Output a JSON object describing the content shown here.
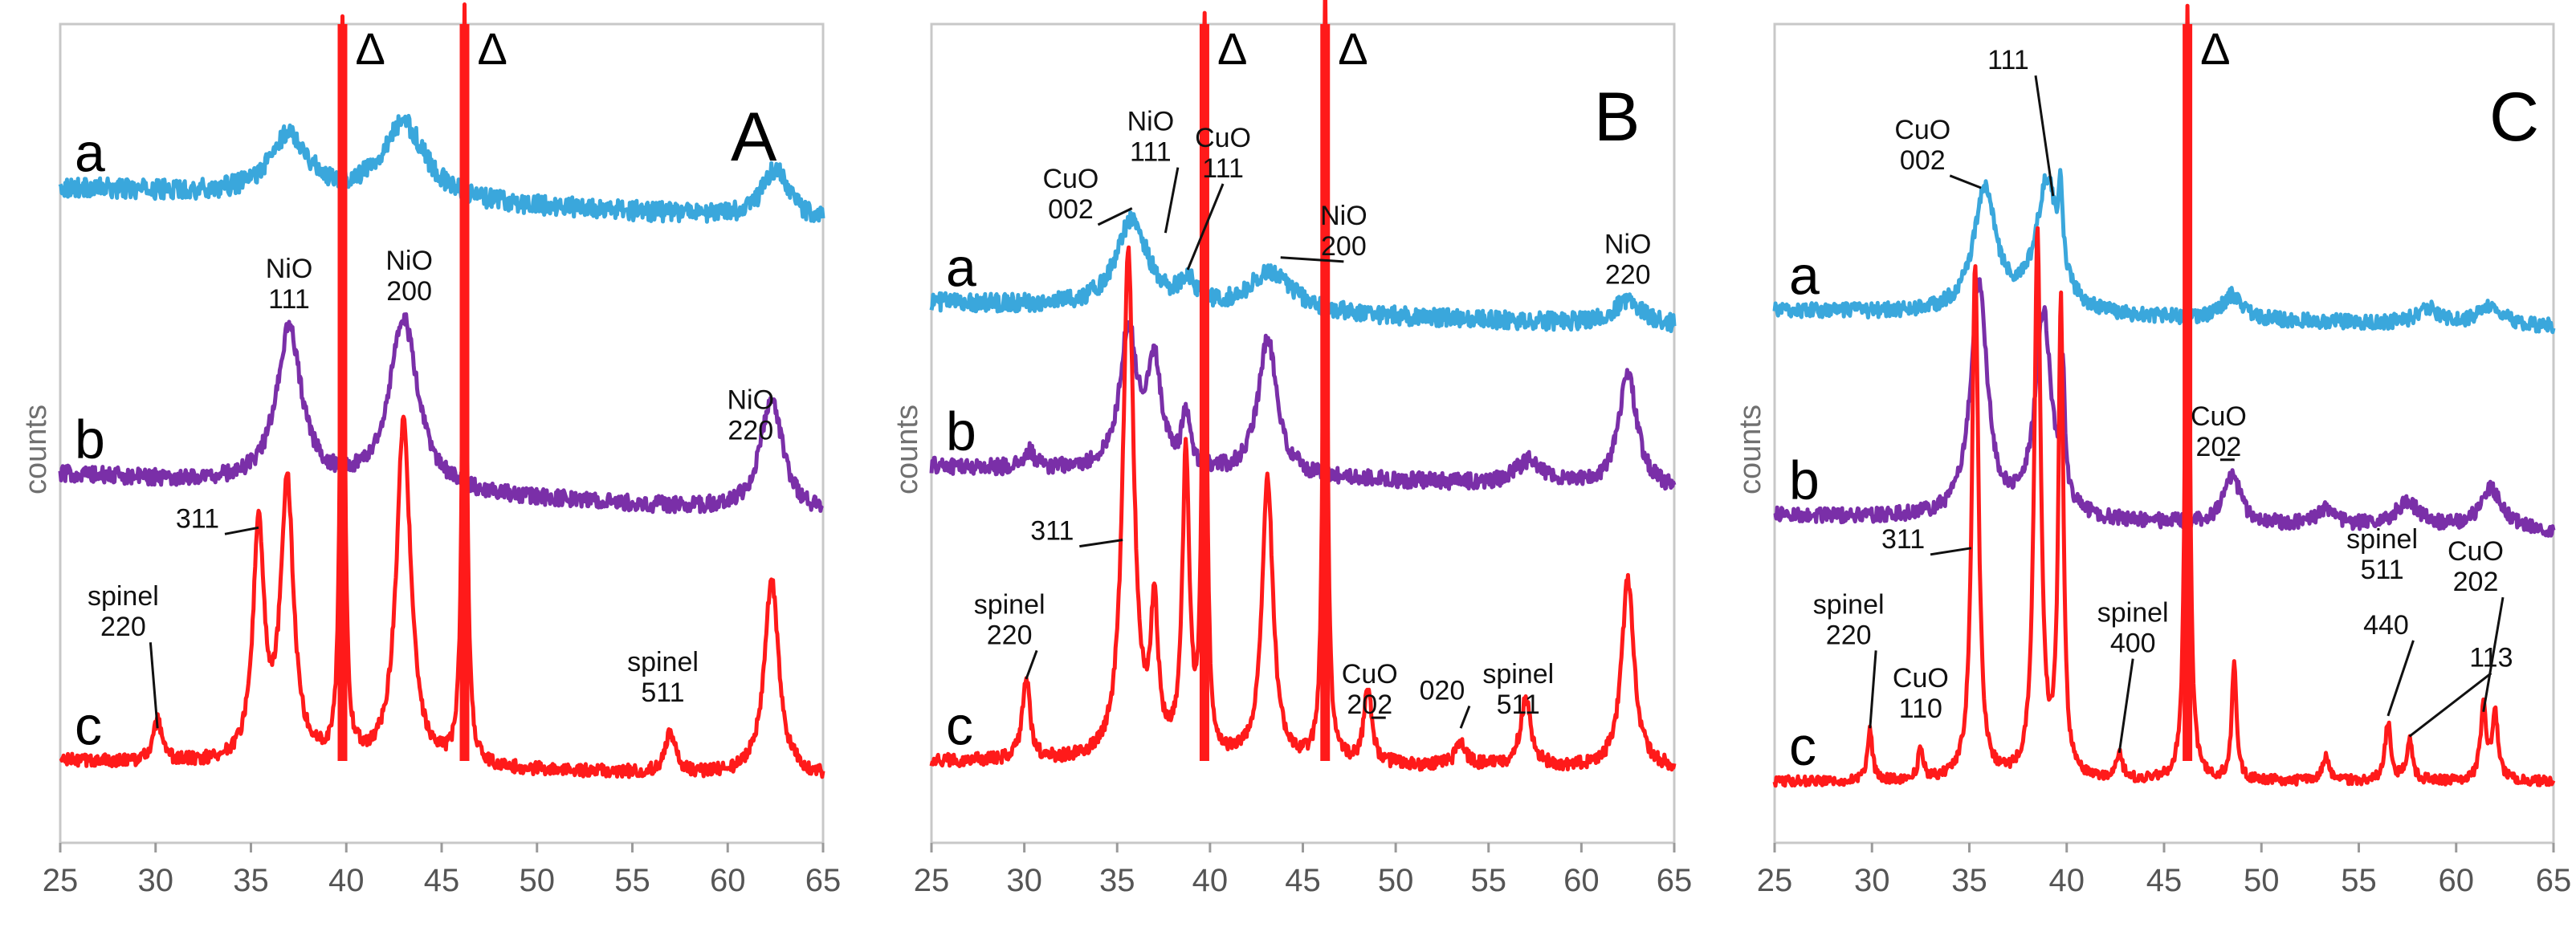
{
  "chart_data": [
    {
      "panel": "A",
      "type": "line",
      "xlabel": "",
      "ylabel": "counts",
      "xlim": [
        25,
        65
      ],
      "xticks": [
        "25",
        "30",
        "35",
        "40",
        "45",
        "50",
        "55",
        "60",
        "65"
      ],
      "delta_lines": [
        {
          "x": 39.8,
          "label": "Δ"
        },
        {
          "x": 46.2,
          "label": "Δ"
        }
      ],
      "series": [
        {
          "name": "a",
          "color": "#3aa7dc",
          "base": 0.8,
          "noise": 0.012,
          "slope": 0.04,
          "peaks": [
            [
              37.0,
              0.075,
              1.2
            ],
            [
              43.0,
              0.095,
              1.4
            ],
            [
              62.5,
              0.06,
              0.8
            ]
          ]
        },
        {
          "name": "b",
          "color": "#7a2fa8",
          "base": 0.45,
          "noise": 0.01,
          "slope": 0.05,
          "peaks": [
            [
              37.0,
              0.19,
              0.8
            ],
            [
              43.0,
              0.21,
              0.9
            ],
            [
              62.3,
              0.14,
              0.7
            ]
          ]
        },
        {
          "name": "c",
          "color": "#ff1a1a",
          "base": 0.1,
          "noise": 0.008,
          "slope": 0.02,
          "peaks": [
            [
              30.1,
              0.05,
              0.25
            ],
            [
              35.4,
              0.28,
              0.35
            ],
            [
              36.9,
              0.34,
              0.4
            ],
            [
              39.8,
              0.9,
              0.12
            ],
            [
              43.0,
              0.42,
              0.45
            ],
            [
              46.2,
              0.92,
              0.12
            ],
            [
              57.0,
              0.05,
              0.3
            ],
            [
              62.3,
              0.24,
              0.45
            ]
          ]
        }
      ],
      "annotations": [
        {
          "text": [
            "NiO",
            "111"
          ],
          "x": 37.0,
          "y": 0.69
        },
        {
          "text": [
            "NiO",
            "200"
          ],
          "x": 43.3,
          "y": 0.7
        },
        {
          "text": [
            "NiO",
            "220"
          ],
          "x": 61.2,
          "y": 0.53
        },
        {
          "text": [
            "311"
          ],
          "x": 32.2,
          "y": 0.385,
          "line_to": [
            35.4,
            0.385
          ]
        },
        {
          "text": [
            "spinel",
            "220"
          ],
          "x": 28.3,
          "y": 0.29,
          "line_to": [
            30.1,
            0.14
          ]
        },
        {
          "text": [
            "spinel",
            "511"
          ],
          "x": 56.6,
          "y": 0.21
        }
      ]
    },
    {
      "panel": "B",
      "type": "line",
      "xlabel": "",
      "ylabel": "counts",
      "xlim": [
        25,
        65
      ],
      "xticks": [
        "25",
        "30",
        "35",
        "40",
        "45",
        "50",
        "55",
        "60",
        "65"
      ],
      "delta_lines": [
        {
          "x": 39.7,
          "label": "Δ"
        },
        {
          "x": 46.2,
          "label": "Δ"
        }
      ],
      "series": [
        {
          "name": "a",
          "color": "#3aa7dc",
          "base": 0.66,
          "noise": 0.011,
          "slope": 0.03,
          "peaks": [
            [
              35.8,
              0.11,
              1.0
            ],
            [
              38.8,
              0.03,
              0.5
            ],
            [
              43.3,
              0.05,
              1.4
            ],
            [
              62.5,
              0.03,
              1.0
            ]
          ]
        },
        {
          "name": "b",
          "color": "#7a2fa8",
          "base": 0.46,
          "noise": 0.01,
          "slope": 0.03,
          "peaks": [
            [
              30.3,
              0.02,
              0.3
            ],
            [
              35.6,
              0.17,
              0.55
            ],
            [
              37.0,
              0.13,
              0.45
            ],
            [
              38.7,
              0.07,
              0.25
            ],
            [
              43.1,
              0.17,
              0.6
            ],
            [
              57.2,
              0.03,
              0.9
            ],
            [
              62.5,
              0.14,
              0.6
            ]
          ]
        },
        {
          "name": "c",
          "color": "#ff1a1a",
          "base": 0.1,
          "noise": 0.008,
          "slope": 0.01,
          "peaks": [
            [
              30.1,
              0.1,
              0.25
            ],
            [
              35.6,
              0.62,
              0.35
            ],
            [
              37.0,
              0.17,
              0.25
            ],
            [
              38.7,
              0.37,
              0.22
            ],
            [
              39.7,
              0.9,
              0.12
            ],
            [
              43.1,
              0.35,
              0.35
            ],
            [
              46.2,
              0.95,
              0.12
            ],
            [
              48.5,
              0.09,
              0.25
            ],
            [
              53.5,
              0.03,
              0.3
            ],
            [
              57.0,
              0.08,
              0.35
            ],
            [
              62.5,
              0.23,
              0.4
            ]
          ]
        }
      ],
      "annotations": [
        {
          "text": [
            "CuO",
            "002"
          ],
          "x": 32.5,
          "y": 0.8,
          "line_to": [
            35.8,
            0.775
          ]
        },
        {
          "text": [
            "NiO",
            "111"
          ],
          "x": 36.8,
          "y": 0.87,
          "line_to": [
            37.6,
            0.745
          ]
        },
        {
          "text": [
            "CuO",
            "111"
          ],
          "x": 40.7,
          "y": 0.85,
          "line_to": [
            38.8,
            0.7
          ]
        },
        {
          "text": [
            "NiO",
            "200"
          ],
          "x": 47.2,
          "y": 0.755,
          "line_to": [
            43.8,
            0.715
          ]
        },
        {
          "text": [
            "NiO",
            "220"
          ],
          "x": 62.5,
          "y": 0.72
        },
        {
          "text": [
            "311"
          ],
          "x": 31.5,
          "y": 0.37,
          "line_to": [
            35.3,
            0.37
          ]
        },
        {
          "text": [
            "spinel",
            "220"
          ],
          "x": 29.2,
          "y": 0.28,
          "line_to": [
            30.1,
            0.2
          ]
        },
        {
          "text": [
            "CuO",
            "202"
          ],
          "x": 48.6,
          "y": 0.195,
          "underline_last": true
        },
        {
          "text": [
            "020"
          ],
          "x": 52.5,
          "y": 0.175,
          "line_to": [
            53.5,
            0.14
          ]
        },
        {
          "text": [
            "spinel",
            "511"
          ],
          "x": 56.6,
          "y": 0.195
        }
      ]
    },
    {
      "panel": "C",
      "type": "line",
      "xlabel": "",
      "ylabel": "counts",
      "xlim": [
        25,
        65
      ],
      "xticks": [
        "25",
        "30",
        "35",
        "40",
        "45",
        "50",
        "55",
        "60",
        "65"
      ],
      "delta_lines": [
        {
          "x": 46.2,
          "label": "Δ"
        }
      ],
      "series": [
        {
          "name": "a",
          "color": "#3aa7dc",
          "base": 0.65,
          "noise": 0.009,
          "slope": 0.02,
          "peaks": [
            [
              35.8,
              0.15,
              0.7
            ],
            [
              39.0,
              0.16,
              0.7
            ],
            [
              39.7,
              0.09,
              0.12
            ],
            [
              48.5,
              0.03,
              0.6
            ],
            [
              58.5,
              0.02,
              0.6
            ],
            [
              61.8,
              0.025,
              0.7
            ]
          ]
        },
        {
          "name": "b",
          "color": "#7a2fa8",
          "base": 0.4,
          "noise": 0.009,
          "slope": 0.02,
          "peaks": [
            [
              35.5,
              0.29,
              0.5
            ],
            [
              38.8,
              0.25,
              0.5
            ],
            [
              39.8,
              0.15,
              0.12
            ],
            [
              48.5,
              0.06,
              0.5
            ],
            [
              53.3,
              0.02,
              0.6
            ],
            [
              57.5,
              0.03,
              0.8
            ],
            [
              61.8,
              0.05,
              0.7
            ]
          ]
        },
        {
          "name": "c",
          "color": "#ff1a1a",
          "base": 0.075,
          "noise": 0.006,
          "slope": 0.0,
          "peaks": [
            [
              29.9,
              0.06,
              0.15
            ],
            [
              32.5,
              0.04,
              0.15
            ],
            [
              35.3,
              0.63,
              0.2
            ],
            [
              38.5,
              0.67,
              0.2
            ],
            [
              39.7,
              0.58,
              0.15
            ],
            [
              42.7,
              0.03,
              0.2
            ],
            [
              46.2,
              0.95,
              0.12
            ],
            [
              48.6,
              0.14,
              0.15
            ],
            [
              53.3,
              0.03,
              0.2
            ],
            [
              56.5,
              0.07,
              0.18
            ],
            [
              57.6,
              0.05,
              0.18
            ],
            [
              61.4,
              0.09,
              0.18
            ],
            [
              62.0,
              0.08,
              0.18
            ]
          ]
        }
      ],
      "annotations": [
        {
          "text": [
            "111"
          ],
          "x": 37.0,
          "y": 0.945,
          "line_to": [
            39.3,
            0.79
          ]
        },
        {
          "text": [
            "CuO",
            "002"
          ],
          "x": 32.6,
          "y": 0.86,
          "line_to": [
            35.6,
            0.8
          ]
        },
        {
          "text": [
            "CuO",
            "202"
          ],
          "x": 47.8,
          "y": 0.51,
          "underline_last": true
        },
        {
          "text": [
            "311"
          ],
          "x": 31.6,
          "y": 0.36,
          "line_to": [
            35.1,
            0.36
          ]
        },
        {
          "text": [
            "spinel",
            "220"
          ],
          "x": 28.8,
          "y": 0.28,
          "line_to": [
            29.9,
            0.14
          ]
        },
        {
          "text": [
            "CuO",
            "110"
          ],
          "x": 32.5,
          "y": 0.19
        },
        {
          "text": [
            "spinel",
            "400"
          ],
          "x": 43.4,
          "y": 0.27,
          "line_to": [
            42.7,
            0.11
          ]
        },
        {
          "text": [
            "spinel",
            "511"
          ],
          "x": 56.2,
          "y": 0.36
        },
        {
          "text": [
            "440"
          ],
          "x": 56.4,
          "y": 0.255,
          "line_to": [
            56.5,
            0.155
          ]
        },
        {
          "text": [
            "CuO",
            "202"
          ],
          "x": 61.0,
          "y": 0.345,
          "line_to": [
            61.4,
            0.16
          ]
        },
        {
          "text": [
            "113"
          ],
          "x": 61.8,
          "y": 0.215,
          "line_to": [
            57.6,
            0.13
          ]
        }
      ]
    }
  ]
}
